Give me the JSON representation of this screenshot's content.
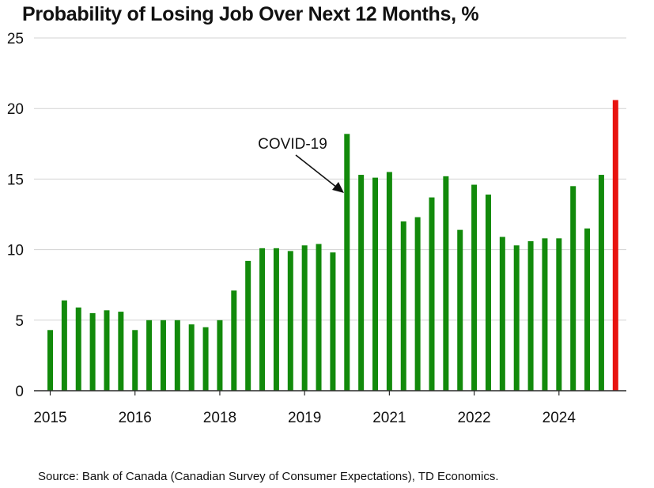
{
  "chart_data": {
    "type": "bar",
    "title": "Probability of Losing Job Over Next 12 Months, %",
    "xlabel": "",
    "ylabel": "",
    "ylim": [
      0,
      25
    ],
    "yticks": [
      0,
      5,
      10,
      15,
      20,
      25
    ],
    "xtick_labels": [
      "2015",
      "2016",
      "2018",
      "2019",
      "2021",
      "2022",
      "2024"
    ],
    "xtick_bar_index": [
      0,
      6,
      12,
      18,
      24,
      30,
      36
    ],
    "values": [
      4.3,
      6.4,
      5.9,
      5.5,
      5.7,
      5.6,
      4.3,
      5.0,
      5.0,
      5.0,
      4.7,
      4.5,
      5.0,
      7.1,
      9.2,
      10.1,
      10.1,
      9.9,
      10.3,
      10.4,
      9.8,
      18.2,
      15.3,
      15.1,
      15.5,
      12.0,
      12.3,
      13.7,
      15.2,
      11.4,
      14.6,
      13.9,
      10.9,
      10.3,
      10.6,
      10.8,
      10.8,
      14.5,
      11.5,
      15.3,
      20.6
    ],
    "highlight_index": 40,
    "annotation": {
      "text": "COVID-19",
      "points_to_index": 21
    },
    "grid": true,
    "source": "Source: Bank of Canada (Canadian Survey of Consumer Expectations), TD Economics."
  },
  "colors": {
    "bar": "#128a0b",
    "highlight": "#e8130f",
    "grid": "#d3d3d3",
    "axis": "#2a2a2a",
    "text": "#111111"
  }
}
